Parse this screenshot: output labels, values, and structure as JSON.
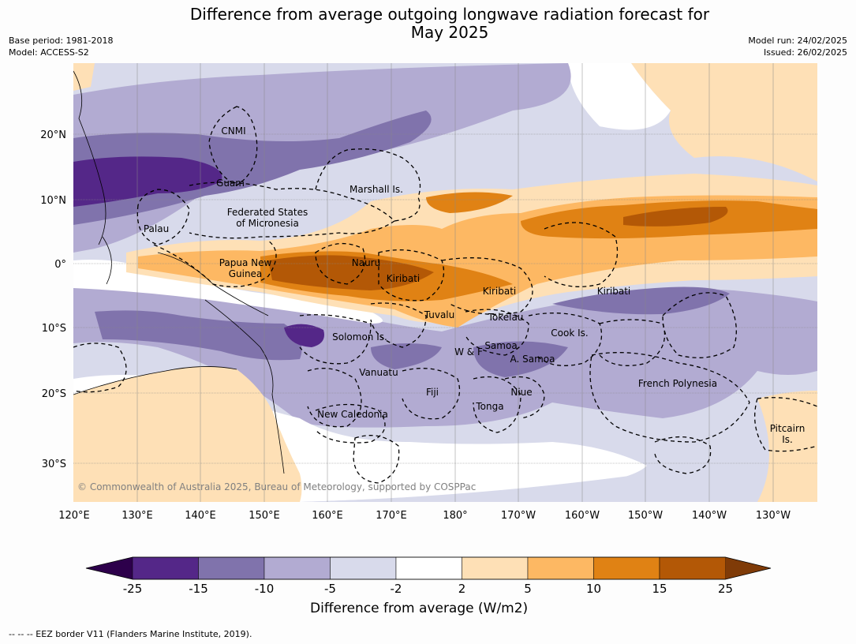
{
  "header": {
    "title_line1": "Difference from average outgoing longwave radiation forecast for",
    "title_line2": "May 2025",
    "base_period": "Base period: 1981-2018",
    "model": "Model: ACCESS-S2",
    "model_run": "Model run: 24/02/2025",
    "issued": "Issued: 26/02/2025"
  },
  "map": {
    "lon_labels": [
      "120°E",
      "130°E",
      "140°E",
      "150°E",
      "160°E",
      "170°E",
      "180°",
      "170°W",
      "160°W",
      "150°W",
      "140°W",
      "130°W"
    ],
    "lat_labels": [
      "20°N",
      "10°N",
      "0°",
      "10°S",
      "20°S",
      "30°S"
    ],
    "places": [
      "CNMI",
      "Guam",
      "Marshall Is.",
      "Federated States",
      "of Micronesia",
      "Palau",
      "Papua New",
      "Guinea",
      "Nauru",
      "Kiribati",
      "Kiribati",
      "Kiribati",
      "Tuvalu",
      "Tokelau",
      "Cook Is.",
      "Solomon Is.",
      "Samoa",
      "W & F",
      "A. Samoa",
      "Vanuatu",
      "Fiji",
      "Niue",
      "French Polynesia",
      "Tonga",
      "New Caledonia",
      "Pitcairn",
      "Is."
    ],
    "copyright": "© Commonwealth of Australia 2025, Bureau of Meteorology, supported by COSPPac"
  },
  "colorbar": {
    "ticks": [
      "-25",
      "-15",
      "-10",
      "-5",
      "-2",
      "2",
      "5",
      "10",
      "15",
      "25"
    ],
    "colors": [
      "#2d004b",
      "#542788",
      "#8073ac",
      "#b2abd2",
      "#d8daeb",
      "#ffffff",
      "#fee0b6",
      "#fdb863",
      "#e08214",
      "#b35806",
      "#7f3b08"
    ],
    "title": "Difference from average (W/m2)"
  },
  "footnote": "--  --  -- EEZ border V11 (Flanders Marine Institute, 2019)."
}
